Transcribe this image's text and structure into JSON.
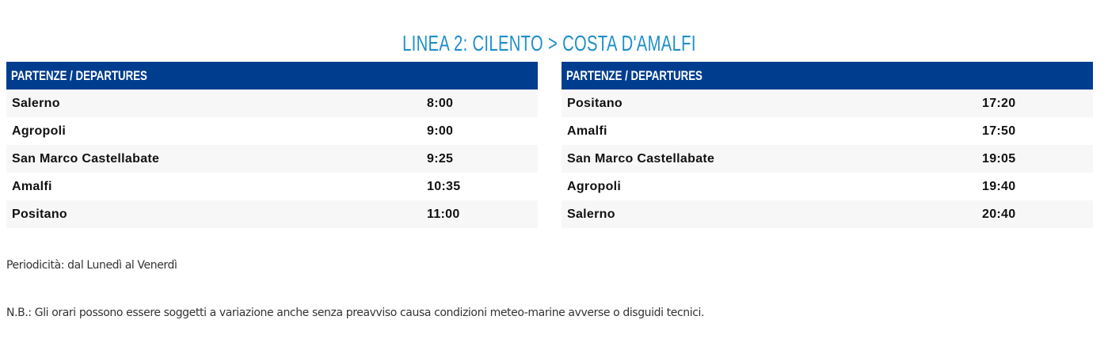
{
  "title": "LINEA 2: CILENTO > COSTA D'AMALFI",
  "tables": [
    {
      "header": "PARTENZE / DEPARTURES",
      "rows": [
        {
          "stop": "Salerno",
          "time": "8:00"
        },
        {
          "stop": "Agropoli",
          "time": "9:00"
        },
        {
          "stop": "San Marco Castellabate",
          "time": "9:25"
        },
        {
          "stop": "Amalfi",
          "time": "10:35"
        },
        {
          "stop": "Positano",
          "time": "11:00"
        }
      ]
    },
    {
      "header": "PARTENZE / DEPARTURES",
      "rows": [
        {
          "stop": "Positano",
          "time": "17:20"
        },
        {
          "stop": "Amalfi",
          "time": "17:50"
        },
        {
          "stop": "San Marco Castellabate",
          "time": "19:05"
        },
        {
          "stop": "Agropoli",
          "time": "19:40"
        },
        {
          "stop": "Salerno",
          "time": "20:40"
        }
      ]
    }
  ],
  "periodicity": "Periodicità: dal Lunedì al Venerdì",
  "note": "N.B.: Gli orari possono essere soggetti a variazione anche senza preavviso causa condizioni meteo-marine avverse o disguidi tecnici.",
  "colors": {
    "title": "#1f8fc9",
    "header": "#003d8f",
    "stripe": "#f7f7f7"
  }
}
